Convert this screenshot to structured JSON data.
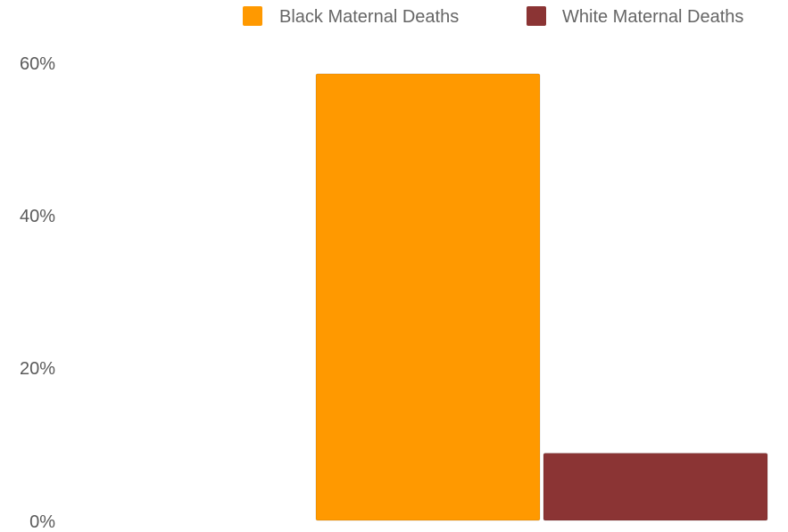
{
  "chart_data": {
    "type": "bar",
    "categories": [
      ""
    ],
    "series": [
      {
        "name": "Black Maternal Deaths",
        "values": [
          58.5
        ],
        "color": "#ff9900"
      },
      {
        "name": "White Maternal Deaths",
        "values": [
          8.8
        ],
        "color": "#8b3434"
      }
    ],
    "y_ticks": [
      "0%",
      "20%",
      "40%",
      "60%"
    ],
    "y_tick_values": [
      0,
      20,
      40,
      60
    ],
    "ylim": [
      0,
      60
    ],
    "grid": false,
    "legend_position": "top-right"
  }
}
